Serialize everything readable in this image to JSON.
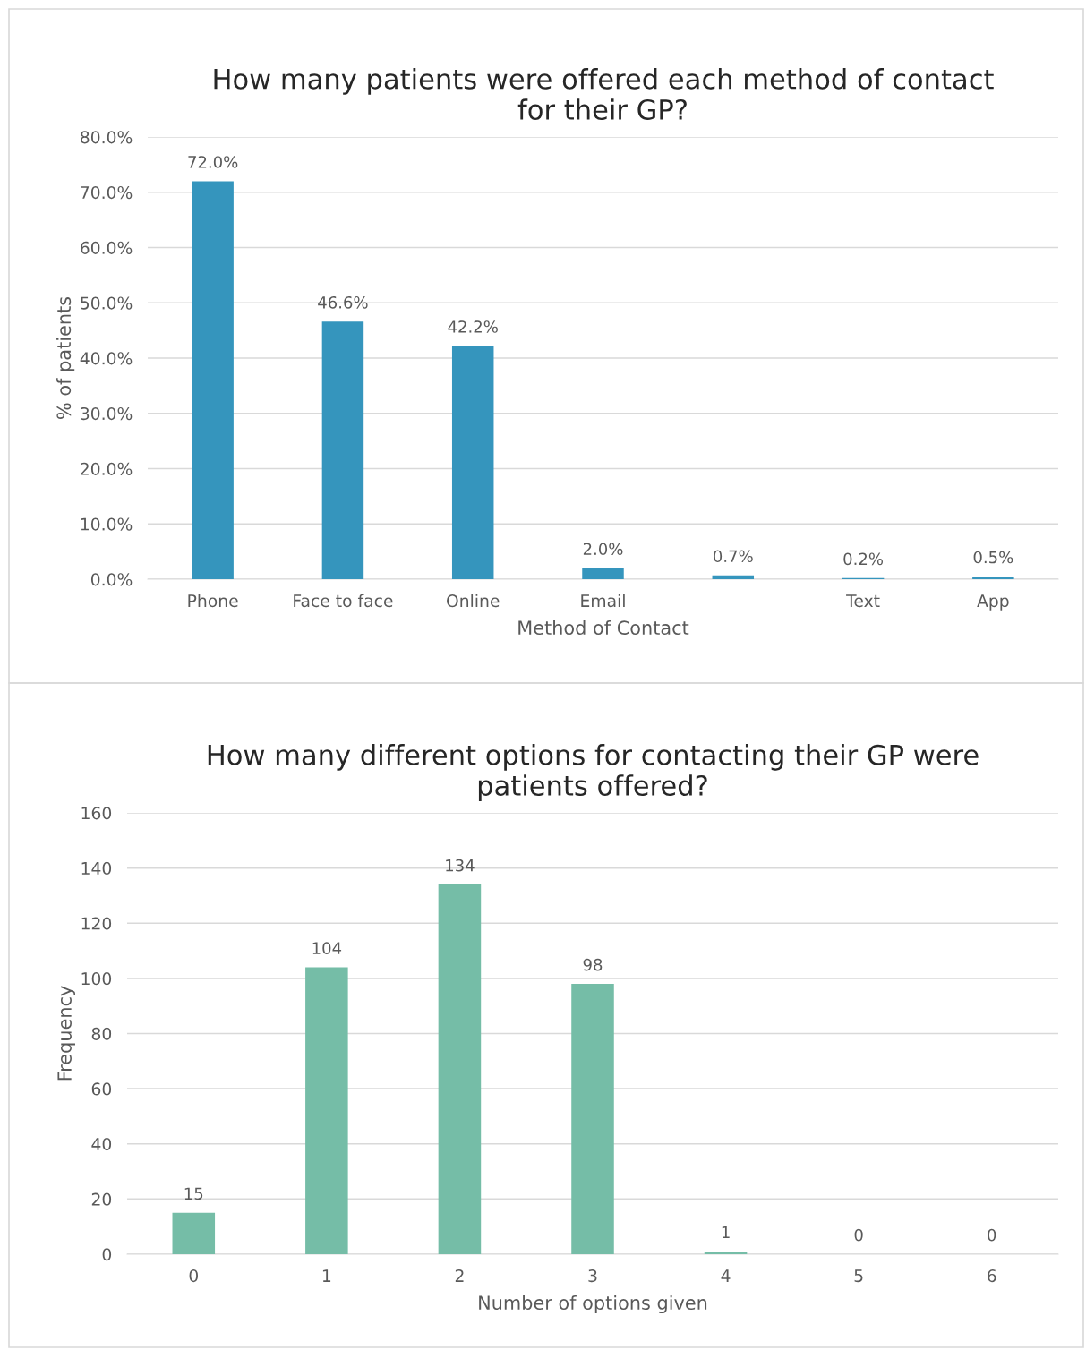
{
  "chart_data": [
    {
      "type": "bar",
      "title": "How many patients were offered each method of contact for their GP?",
      "xlabel": "Method of Contact",
      "ylabel": "% of patients",
      "categories": [
        "Phone",
        "Face to face",
        "Online",
        "Email",
        null,
        "Text",
        "App"
      ],
      "values": [
        72.0,
        46.6,
        42.2,
        2.0,
        0.7,
        0.2,
        0.5
      ],
      "color": "#3595bd",
      "value_labels": [
        "72.0%",
        "46.6%",
        "42.2%",
        "2.0%",
        "0.7%",
        "0.2%",
        "0.5%"
      ],
      "ylim": [
        0,
        80
      ],
      "yticks": [
        {
          "value": 0,
          "label": "0.0%"
        },
        {
          "value": 10,
          "label": "10.0%"
        },
        {
          "value": 20,
          "label": "20.0%"
        },
        {
          "value": 30,
          "label": "30.0%"
        },
        {
          "value": 40,
          "label": "40.0%"
        },
        {
          "value": 50,
          "label": "50.0%"
        },
        {
          "value": 60,
          "label": "60.0%"
        },
        {
          "value": 70,
          "label": "70.0%"
        },
        {
          "value": 80,
          "label": "80.0%"
        }
      ],
      "grid": "y",
      "legend": false
    },
    {
      "type": "bar",
      "title": "How many different options for contacting their GP were patients offered?",
      "xlabel": "Number of options given",
      "ylabel": "Frequency",
      "categories": [
        "0",
        "1",
        "2",
        "3",
        "4",
        "5",
        "6"
      ],
      "values": [
        15,
        104,
        134,
        98,
        1,
        0,
        0
      ],
      "color": "#75bda7",
      "data_labels": true,
      "ylim": [
        0,
        160
      ],
      "yticks": [
        0,
        20,
        40,
        60,
        80,
        100,
        120,
        140,
        160
      ],
      "grid": "y",
      "legend": false
    }
  ]
}
